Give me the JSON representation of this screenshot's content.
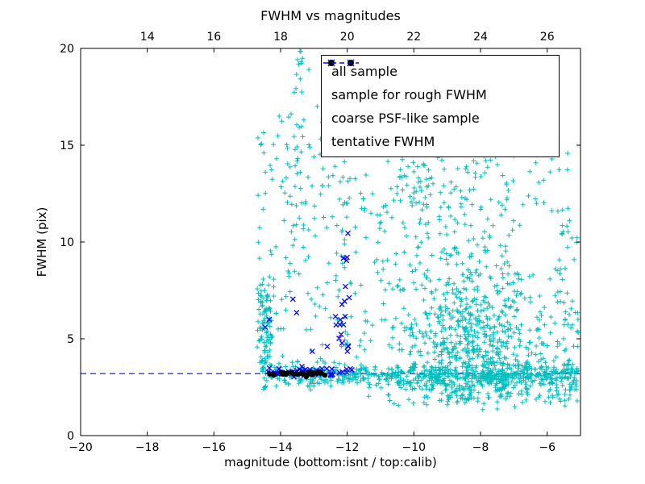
{
  "chart_data": {
    "type": "scatter",
    "title": "FWHM vs magnitudes",
    "xlabel": "magnitude (bottom:isnt / top:calib)",
    "ylabel": "FWHM (pix)",
    "xlim": [
      -20,
      -5
    ],
    "ylim": [
      0,
      20
    ],
    "grid": false,
    "legend_position": "upper right",
    "x_ticks_bottom": {
      "positions": [
        -20,
        -18,
        -16,
        -14,
        -12,
        -10,
        -8,
        -6
      ],
      "labels": [
        "−20",
        "−18",
        "−16",
        "−14",
        "−12",
        "−10",
        "−8",
        "−6"
      ]
    },
    "x_ticks_top": {
      "positions": [
        -18,
        -16,
        -14,
        -12,
        -10,
        -8,
        -6
      ],
      "labels": [
        "14",
        "16",
        "18",
        "20",
        "22",
        "24",
        "26"
      ]
    },
    "y_ticks": {
      "positions": [
        0,
        5,
        10,
        15,
        20
      ],
      "labels": [
        "0",
        "5",
        "10",
        "15",
        "20"
      ]
    },
    "tentative_fwhm": 3.2,
    "colors": {
      "all_sample": "#00bfbf",
      "rough_sample": "#0000ff",
      "coarse_sample": "#000000",
      "tentative_line": "#0000ff"
    },
    "legend": [
      {
        "label": "all sample",
        "marker": "plus",
        "color": "#00bfbf"
      },
      {
        "label": "sample for rough FWHM",
        "marker": "x",
        "color": "#0000ff"
      },
      {
        "label": "coarse PSF-like sample",
        "marker": "dot",
        "color": "#000000"
      },
      {
        "label": "tentative FWHM",
        "marker": "dashed-line",
        "color": "#0000ff"
      }
    ],
    "series": [
      {
        "name": "all sample",
        "marker": "plus",
        "color": "#00bfbf",
        "seed": 7,
        "clusters": [
          {
            "n": 560,
            "x": {
              "dist": "uniform",
              "min": -14.55,
              "max": -5.05
            },
            "y": {
              "dist": "normal",
              "mean": 3.15,
              "sd": 0.3,
              "min": 2.3,
              "max": 4.3
            }
          },
          {
            "n": 130,
            "x": {
              "dist": "uniform",
              "min": -10.8,
              "max": -5.05
            },
            "y": {
              "dist": "normal",
              "mean": 2.4,
              "sd": 0.45,
              "min": 1.3,
              "max": 3.2
            }
          },
          {
            "n": 680,
            "x": {
              "dist": "normal",
              "mean": -8.0,
              "sd": 1.15,
              "min": -11.6,
              "max": -5.05
            },
            "y": {
              "dist": "normal",
              "mean": 4.6,
              "sd": 2.1,
              "min": 1.7,
              "max": 12.5
            }
          },
          {
            "n": 170,
            "x": {
              "dist": "normal",
              "mean": -8.9,
              "sd": 1.25,
              "min": -11.8,
              "max": -5.2
            },
            "y": {
              "dist": "uniform",
              "min": 7.5,
              "max": 15.2
            }
          },
          {
            "n": 35,
            "x": {
              "dist": "normal",
              "mean": -8.6,
              "sd": 1.6,
              "min": -12.5,
              "max": -5.3
            },
            "y": {
              "dist": "uniform",
              "min": 11.5,
              "max": 15.5
            }
          },
          {
            "n": 95,
            "x": {
              "dist": "normal",
              "mean": -14.45,
              "sd": 0.12,
              "min": -14.7,
              "max": -14.15
            },
            "y": {
              "dist": "normal",
              "mean": 5.2,
              "sd": 1.6,
              "min": 3.2,
              "max": 8.6
            }
          },
          {
            "n": 120,
            "x": {
              "dist": "uniform",
              "min": -14.7,
              "max": -11.85
            },
            "y": {
              "dist": "uniform",
              "min": 3.5,
              "max": 16.5
            }
          },
          {
            "n": 42,
            "x": {
              "dist": "normal",
              "mean": -13.55,
              "sd": 0.18,
              "min": -14.0,
              "max": -13.1
            },
            "y": {
              "dist": "uniform",
              "min": 8.0,
              "max": 19.9
            }
          },
          {
            "n": 30,
            "x": {
              "dist": "normal",
              "mean": -12.1,
              "sd": 0.12,
              "min": -12.4,
              "max": -11.8
            },
            "y": {
              "dist": "uniform",
              "min": 4.0,
              "max": 14.5
            }
          },
          {
            "n": 70,
            "x": {
              "dist": "uniform",
              "min": -11.8,
              "max": -9.6
            },
            "y": {
              "dist": "uniform",
              "min": 4.0,
              "max": 14.0
            }
          },
          {
            "n": 45,
            "x": {
              "dist": "uniform",
              "min": -5.65,
              "max": -5.05
            },
            "y": {
              "dist": "uniform",
              "min": 2.2,
              "max": 11.2
            }
          },
          {
            "n": 14,
            "x": {
              "dist": "uniform",
              "min": -7.2,
              "max": -5.3
            },
            "y": {
              "dist": "uniform",
              "min": 11.0,
              "max": 14.2
            }
          }
        ],
        "points": [
          [
            -13.42,
            19.85
          ],
          [
            -12.9,
            17.0
          ],
          [
            -13.3,
            16.3
          ],
          [
            -14.5,
            14.6
          ],
          [
            -13.0,
            14.4
          ],
          [
            -12.55,
            14.9
          ]
        ]
      },
      {
        "name": "sample for rough FWHM",
        "marker": "x",
        "color": "#0000ff",
        "seed": 11,
        "clusters": [
          {
            "n": 46,
            "x": {
              "dist": "uniform",
              "min": -14.4,
              "max": -11.85
            },
            "y": {
              "dist": "normal",
              "mean": 3.32,
              "sd": 0.14,
              "min": 3.0,
              "max": 3.8
            }
          },
          {
            "n": 13,
            "x": {
              "dist": "normal",
              "mean": -12.05,
              "sd": 0.09,
              "min": -12.25,
              "max": -11.85
            },
            "y": {
              "dist": "uniform",
              "min": 3.9,
              "max": 9.3
            }
          },
          {
            "n": 5,
            "x": {
              "dist": "normal",
              "mean": -12.35,
              "sd": 0.08,
              "min": -12.55,
              "max": -12.15
            },
            "y": {
              "dist": "uniform",
              "min": 4.2,
              "max": 6.6
            }
          }
        ],
        "points": [
          [
            -13.52,
            6.35
          ],
          [
            -13.63,
            7.05
          ],
          [
            -14.34,
            6.0
          ],
          [
            -14.46,
            5.6
          ],
          [
            -13.05,
            4.35
          ],
          [
            -11.98,
            10.45
          ],
          [
            -12.6,
            4.6
          ],
          [
            -12.02,
            9.05
          ]
        ]
      },
      {
        "name": "coarse PSF-like sample",
        "marker": "dot",
        "color": "#000000",
        "seed": 5,
        "clusters": [
          {
            "n": 26,
            "x": {
              "dist": "uniform",
              "min": -14.35,
              "max": -12.55
            },
            "y": {
              "dist": "normal",
              "mean": 3.18,
              "sd": 0.07,
              "min": 3.0,
              "max": 3.4
            }
          }
        ],
        "points": []
      }
    ]
  }
}
